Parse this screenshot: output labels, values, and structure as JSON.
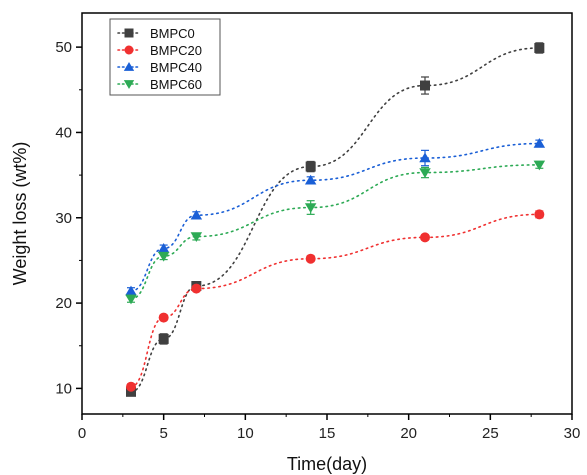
{
  "chart_data": {
    "type": "scatter",
    "xlabel": "Time(day)",
    "ylabel": "Weight loss (wt%)",
    "xlim": [
      0,
      30
    ],
    "ylim": [
      7,
      54
    ],
    "xticks": [
      0,
      5,
      10,
      15,
      20,
      25,
      30
    ],
    "yticks": [
      10,
      20,
      30,
      40,
      50
    ],
    "grid": false,
    "legend_position": "top-left",
    "line_style": "dotted",
    "series": [
      {
        "name": "BMPC0",
        "marker": "square",
        "color": "#404040",
        "x": [
          3,
          5,
          7,
          14,
          21,
          28
        ],
        "y": [
          9.6,
          15.8,
          22.0,
          36.0,
          45.5,
          49.9
        ],
        "err": [
          0.4,
          0.6,
          0.5,
          0.6,
          1.0,
          0.6
        ]
      },
      {
        "name": "BMPC20",
        "marker": "circle",
        "color": "#f03030",
        "x": [
          3,
          5,
          7,
          14,
          21,
          28
        ],
        "y": [
          10.2,
          18.3,
          21.7,
          25.2,
          27.7,
          30.4
        ],
        "err": [
          0.3,
          0.3,
          0.3,
          0.3,
          0.3,
          0.4
        ]
      },
      {
        "name": "BMPC40",
        "marker": "triangle-up",
        "color": "#1a5fd6",
        "x": [
          3,
          5,
          7,
          14,
          21,
          28
        ],
        "y": [
          21.4,
          26.4,
          30.3,
          34.4,
          37.0,
          38.7
        ],
        "err": [
          0.4,
          0.4,
          0.4,
          0.4,
          0.9,
          0.4
        ]
      },
      {
        "name": "BMPC60",
        "marker": "triangle-down",
        "color": "#2daa55",
        "x": [
          3,
          5,
          7,
          14,
          21,
          28
        ],
        "y": [
          20.5,
          25.5,
          27.8,
          31.2,
          35.3,
          36.2
        ],
        "err": [
          0.4,
          0.4,
          0.4,
          0.8,
          0.6,
          0.4
        ]
      }
    ]
  }
}
